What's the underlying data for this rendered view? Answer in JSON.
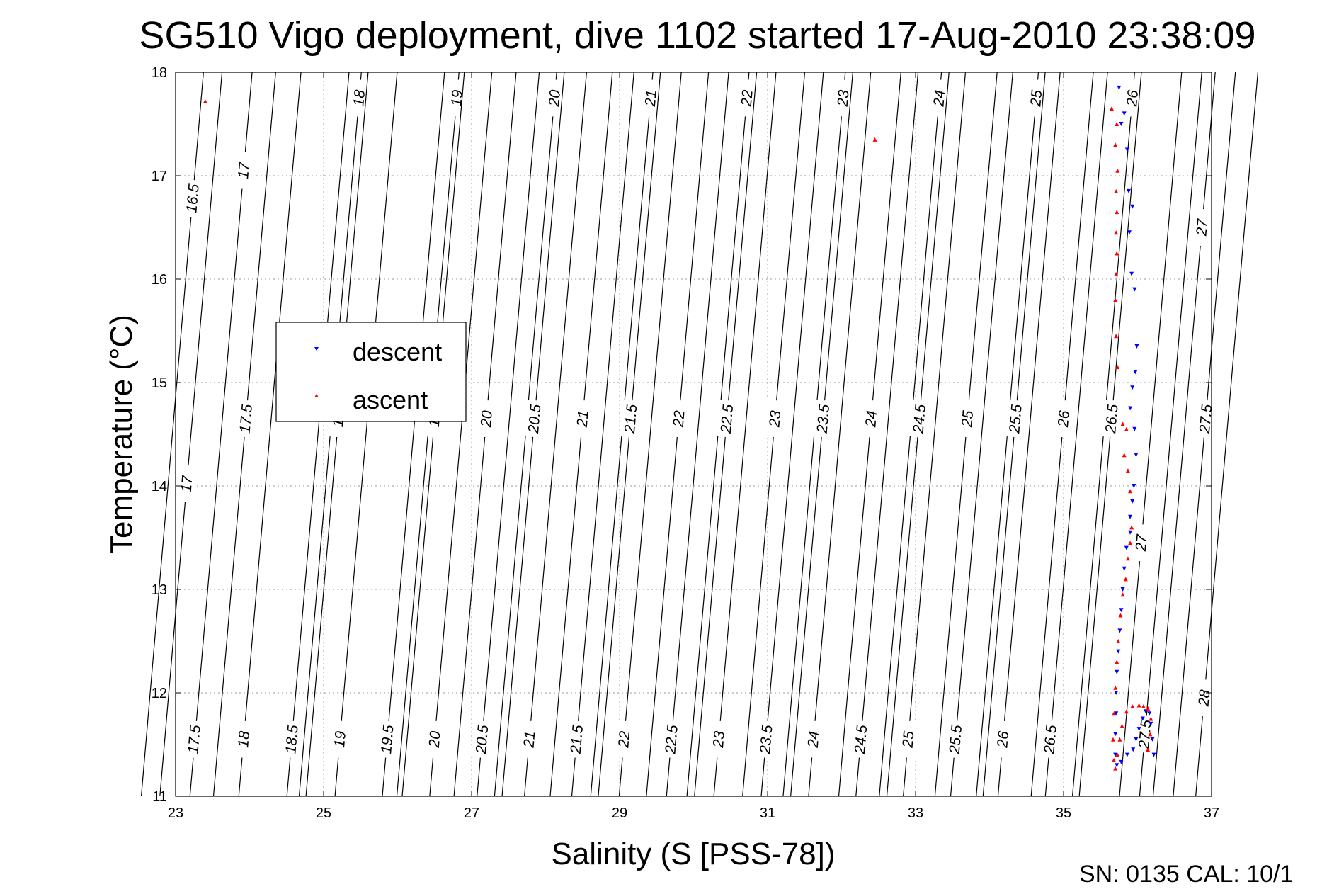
{
  "chart_data": {
    "type": "scatter",
    "title": "SG510 Vigo deployment, dive 1102 started 17-Aug-2010 23:38:09",
    "xlabel": "Salinity (S [PSS-78])",
    "ylabel": "Temperature (°C)",
    "xlim": [
      23,
      37
    ],
    "ylim": [
      11,
      18
    ],
    "x_ticks": [
      "23",
      "25",
      "27",
      "29",
      "31",
      "33",
      "35",
      "37"
    ],
    "y_ticks": [
      "11",
      "12",
      "13",
      "14",
      "15",
      "16",
      "17",
      "18"
    ],
    "grid": true,
    "legend_position": "left-middle",
    "footer": "SN: 0135  CAL: 10/1",
    "series": [
      {
        "name": "descent",
        "color": "#0000ff",
        "marker": "triangle-down",
        "points": [
          [
            35.75,
            17.85
          ],
          [
            35.82,
            17.6
          ],
          [
            35.78,
            17.5
          ],
          [
            35.86,
            17.25
          ],
          [
            35.88,
            16.85
          ],
          [
            35.93,
            16.7
          ],
          [
            35.89,
            16.45
          ],
          [
            35.92,
            16.05
          ],
          [
            35.96,
            15.9
          ],
          [
            35.99,
            15.35
          ],
          [
            35.97,
            15.1
          ],
          [
            35.93,
            14.95
          ],
          [
            35.9,
            14.75
          ],
          [
            35.96,
            14.55
          ],
          [
            35.98,
            14.3
          ],
          [
            35.95,
            14.0
          ],
          [
            35.93,
            13.85
          ],
          [
            35.9,
            13.7
          ],
          [
            35.9,
            13.55
          ],
          [
            35.85,
            13.4
          ],
          [
            35.82,
            13.2
          ],
          [
            35.8,
            13.0
          ],
          [
            35.78,
            12.8
          ],
          [
            35.76,
            12.6
          ],
          [
            35.74,
            12.4
          ],
          [
            35.72,
            12.2
          ],
          [
            35.71,
            12.0
          ],
          [
            35.71,
            11.8
          ],
          [
            35.7,
            11.6
          ],
          [
            35.7,
            11.4
          ],
          [
            35.72,
            11.3
          ],
          [
            35.78,
            11.33
          ],
          [
            35.86,
            11.4
          ],
          [
            35.94,
            11.45
          ],
          [
            35.98,
            11.55
          ],
          [
            36.02,
            11.65
          ],
          [
            36.07,
            11.75
          ],
          [
            36.11,
            11.82
          ],
          [
            36.16,
            11.8
          ],
          [
            36.18,
            11.7
          ],
          [
            36.2,
            11.55
          ],
          [
            36.22,
            11.4
          ]
        ]
      },
      {
        "name": "ascent",
        "color": "#ff0000",
        "marker": "triangle-up",
        "points": [
          [
            23.4,
            17.72
          ],
          [
            32.45,
            17.35
          ],
          [
            35.65,
            17.65
          ],
          [
            35.72,
            17.5
          ],
          [
            35.7,
            17.3
          ],
          [
            35.73,
            17.05
          ],
          [
            35.71,
            16.85
          ],
          [
            35.72,
            16.65
          ],
          [
            35.71,
            16.45
          ],
          [
            35.72,
            16.25
          ],
          [
            35.71,
            16.05
          ],
          [
            35.7,
            15.8
          ],
          [
            35.71,
            15.45
          ],
          [
            35.73,
            15.15
          ],
          [
            35.8,
            14.6
          ],
          [
            35.85,
            14.55
          ],
          [
            35.82,
            14.3
          ],
          [
            35.87,
            14.15
          ],
          [
            35.9,
            13.95
          ],
          [
            35.92,
            13.6
          ],
          [
            35.9,
            13.45
          ],
          [
            35.87,
            13.3
          ],
          [
            35.84,
            13.1
          ],
          [
            35.8,
            12.95
          ],
          [
            35.77,
            12.75
          ],
          [
            35.74,
            12.5
          ],
          [
            35.72,
            12.3
          ],
          [
            35.7,
            12.05
          ],
          [
            35.68,
            11.8
          ],
          [
            35.67,
            11.55
          ],
          [
            35.68,
            11.35
          ],
          [
            35.7,
            11.27
          ],
          [
            35.73,
            11.4
          ],
          [
            35.76,
            11.55
          ],
          [
            35.79,
            11.68
          ],
          [
            35.85,
            11.82
          ],
          [
            35.93,
            11.87
          ],
          [
            36.02,
            11.88
          ],
          [
            36.08,
            11.87
          ],
          [
            36.14,
            11.85
          ],
          [
            36.18,
            11.75
          ],
          [
            36.17,
            11.6
          ],
          [
            36.14,
            11.45
          ]
        ]
      }
    ],
    "isopycnals": [
      {
        "label": "16.5",
        "s": 23.23,
        "t": 16.78
      },
      {
        "label": "17",
        "s": 23.92,
        "t": 17.05
      },
      {
        "label": "18",
        "s": 25.48,
        "t": 17.75
      },
      {
        "label": "19",
        "s": 26.8,
        "t": 17.75
      },
      {
        "label": "20",
        "s": 28.12,
        "t": 17.75
      },
      {
        "label": "21",
        "s": 29.42,
        "t": 17.75
      },
      {
        "label": "22",
        "s": 30.72,
        "t": 17.75
      },
      {
        "label": "23",
        "s": 32.02,
        "t": 17.75
      },
      {
        "label": "24",
        "s": 33.32,
        "t": 17.75
      },
      {
        "label": "25",
        "s": 34.63,
        "t": 17.75
      },
      {
        "label": "26",
        "s": 35.93,
        "t": 17.75
      },
      {
        "label": "27",
        "s": 36.87,
        "t": 16.5
      },
      {
        "label": "17",
        "s": 23.15,
        "t": 14.02
      },
      {
        "label": "17.5",
        "s": 23.95,
        "t": 14.65
      },
      {
        "label": "18",
        "s": 25.2,
        "t": 14.65
      },
      {
        "label": "19",
        "s": 26.5,
        "t": 14.65
      },
      {
        "label": "20",
        "s": 27.2,
        "t": 14.65
      },
      {
        "label": "20.5",
        "s": 27.85,
        "t": 14.65
      },
      {
        "label": "21",
        "s": 28.5,
        "t": 14.65
      },
      {
        "label": "21.5",
        "s": 29.15,
        "t": 14.65
      },
      {
        "label": "22",
        "s": 29.8,
        "t": 14.65
      },
      {
        "label": "22.5",
        "s": 30.45,
        "t": 14.65
      },
      {
        "label": "23",
        "s": 31.1,
        "t": 14.65
      },
      {
        "label": "23.5",
        "s": 31.75,
        "t": 14.65
      },
      {
        "label": "24",
        "s": 32.4,
        "t": 14.65
      },
      {
        "label": "24.5",
        "s": 33.05,
        "t": 14.65
      },
      {
        "label": "25",
        "s": 33.7,
        "t": 14.65
      },
      {
        "label": "25.5",
        "s": 34.35,
        "t": 14.65
      },
      {
        "label": "26",
        "s": 35.0,
        "t": 14.65
      },
      {
        "label": "26.5",
        "s": 35.65,
        "t": 14.65
      },
      {
        "label": "27",
        "s": 36.05,
        "t": 13.45
      },
      {
        "label": "27.5",
        "s": 36.92,
        "t": 14.65
      },
      {
        "label": "28",
        "s": 36.9,
        "t": 11.95
      },
      {
        "label": "27.5",
        "s": 36.1,
        "t": 11.6
      },
      {
        "label": "17.5",
        "s": 23.25,
        "t": 11.55
      },
      {
        "label": "18",
        "s": 23.92,
        "t": 11.55
      },
      {
        "label": "18.5",
        "s": 24.57,
        "t": 11.55
      },
      {
        "label": "19",
        "s": 25.22,
        "t": 11.55
      },
      {
        "label": "19.5",
        "s": 25.86,
        "t": 11.55
      },
      {
        "label": "20",
        "s": 26.5,
        "t": 11.55
      },
      {
        "label": "20.5",
        "s": 27.14,
        "t": 11.55
      },
      {
        "label": "21",
        "s": 27.78,
        "t": 11.55
      },
      {
        "label": "21.5",
        "s": 28.42,
        "t": 11.55
      },
      {
        "label": "22",
        "s": 29.06,
        "t": 11.55
      },
      {
        "label": "22.5",
        "s": 29.7,
        "t": 11.55
      },
      {
        "label": "23",
        "s": 30.34,
        "t": 11.55
      },
      {
        "label": "23.5",
        "s": 30.98,
        "t": 11.55
      },
      {
        "label": "24",
        "s": 31.62,
        "t": 11.55
      },
      {
        "label": "24.5",
        "s": 32.26,
        "t": 11.55
      },
      {
        "label": "25",
        "s": 32.9,
        "t": 11.55
      },
      {
        "label": "25.5",
        "s": 33.54,
        "t": 11.55
      },
      {
        "label": "26",
        "s": 34.18,
        "t": 11.55
      },
      {
        "label": "26.5",
        "s": 34.82,
        "t": 11.55
      }
    ]
  }
}
